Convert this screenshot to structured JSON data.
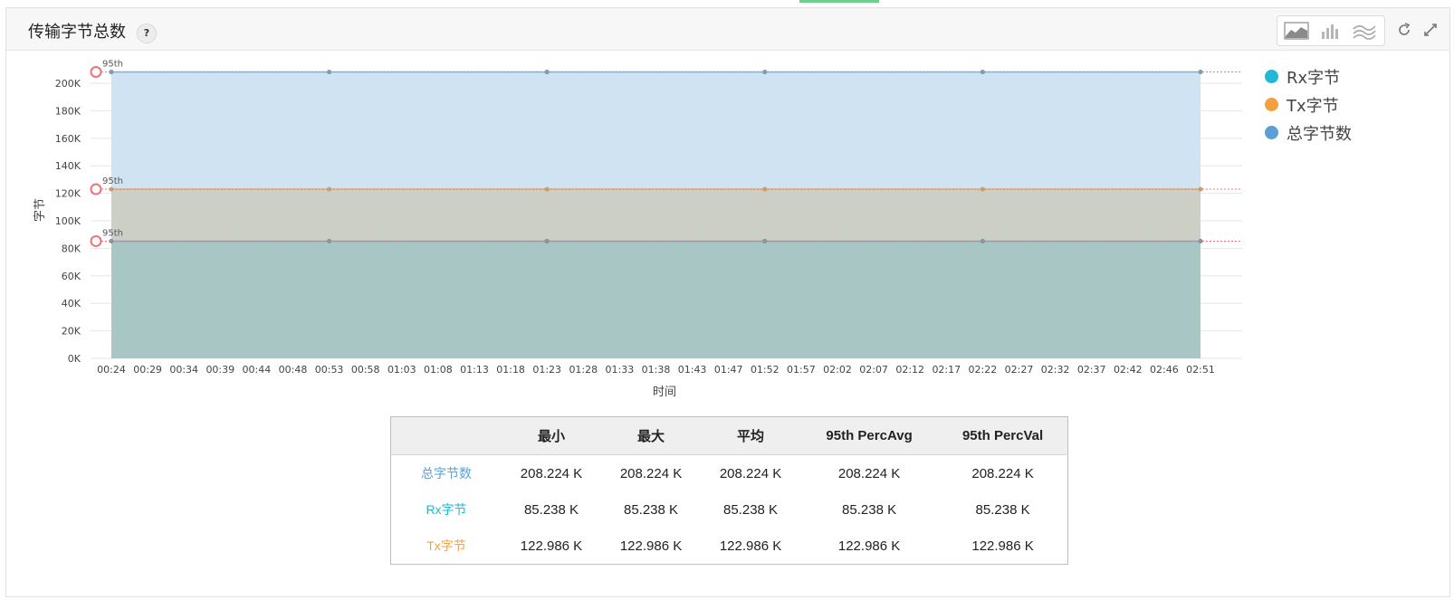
{
  "header": {
    "title": "传输字节总数",
    "help_label": "?"
  },
  "toolbar": {
    "buttons": [
      {
        "icon": "area-chart-icon"
      },
      {
        "icon": "bar-chart-icon"
      },
      {
        "icon": "line-chart-icon"
      }
    ],
    "refresh_icon": "refresh-icon",
    "expand_icon": "expand-icon"
  },
  "colors": {
    "rx": "#1eb9d6",
    "tx": "#f5a040",
    "total": "#5b9fd6",
    "marker": "#e8747c"
  },
  "chart_data": {
    "type": "area",
    "ylabel": "字节",
    "xlabel": "时间",
    "yticks": [
      "0K",
      "20K",
      "40K",
      "60K",
      "80K",
      "100K",
      "120K",
      "140K",
      "160K",
      "180K",
      "200K"
    ],
    "ylim": [
      0,
      210000
    ],
    "x_ticks": [
      "00:24",
      "00:29",
      "00:34",
      "00:39",
      "00:44",
      "00:48",
      "00:53",
      "00:58",
      "01:03",
      "01:08",
      "01:13",
      "01:18",
      "01:23",
      "01:28",
      "01:33",
      "01:38",
      "01:43",
      "01:47",
      "01:52",
      "01:57",
      "02:02",
      "02:07",
      "02:12",
      "02:17",
      "02:22",
      "02:27",
      "02:32",
      "02:37",
      "02:42",
      "02:46",
      "02:51"
    ],
    "point_ticks": [
      "00:24",
      "00:53",
      "01:23",
      "01:52",
      "02:22",
      "02:51"
    ],
    "series": [
      {
        "name": "总字节数",
        "values": [
          208224,
          208224,
          208224,
          208224,
          208224,
          208224
        ],
        "percentile_label": "95th"
      },
      {
        "name": "Tx字节",
        "values": [
          122986,
          122986,
          122986,
          122986,
          122986,
          122986
        ],
        "percentile_label": "95th"
      },
      {
        "name": "Rx字节",
        "values": [
          85238,
          85238,
          85238,
          85238,
          85238,
          85238
        ],
        "percentile_label": "95th"
      }
    ],
    "legend": [
      "Rx字节",
      "Tx字节",
      "总字节数"
    ],
    "legend_placement": "right",
    "grid": true
  },
  "stats_table": {
    "headers": [
      "",
      "最小",
      "最大",
      "平均",
      "95th PercAvg",
      "95th PercVal"
    ],
    "rows": [
      {
        "label": "总字节数",
        "values": [
          "208.224 K",
          "208.224 K",
          "208.224 K",
          "208.224 K",
          "208.224 K"
        ]
      },
      {
        "label": "Rx字节",
        "values": [
          "85.238 K",
          "85.238 K",
          "85.238 K",
          "85.238 K",
          "85.238 K"
        ]
      },
      {
        "label": "Tx字节",
        "values": [
          "122.986 K",
          "122.986 K",
          "122.986 K",
          "122.986 K",
          "122.986 K"
        ]
      }
    ]
  }
}
